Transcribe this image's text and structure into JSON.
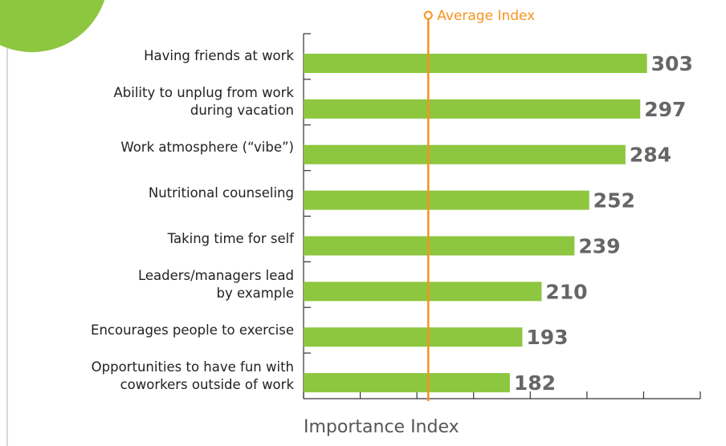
{
  "chart_data": {
    "type": "bar",
    "orientation": "horizontal",
    "categories": [
      "Having friends at work",
      "Ability to unplug from work\nduring vacation",
      "Work atmosphere (“vibe”)",
      "Nutritional counseling",
      "Taking time for self",
      "Leaders/managers lead\nby example",
      "Encourages people to exercise",
      "Opportunities to have fun with\ncoworkers outside of work"
    ],
    "values": [
      303,
      297,
      284,
      252,
      239,
      210,
      193,
      182
    ],
    "color": "#8dc63f",
    "xlabel": "Importance Index",
    "xlim": [
      0,
      350
    ],
    "xticks": [
      0,
      50,
      100,
      150,
      200,
      250,
      300,
      350
    ],
    "reference_line": {
      "label": "Average Index",
      "value": 110,
      "color": "#f7941d"
    }
  }
}
